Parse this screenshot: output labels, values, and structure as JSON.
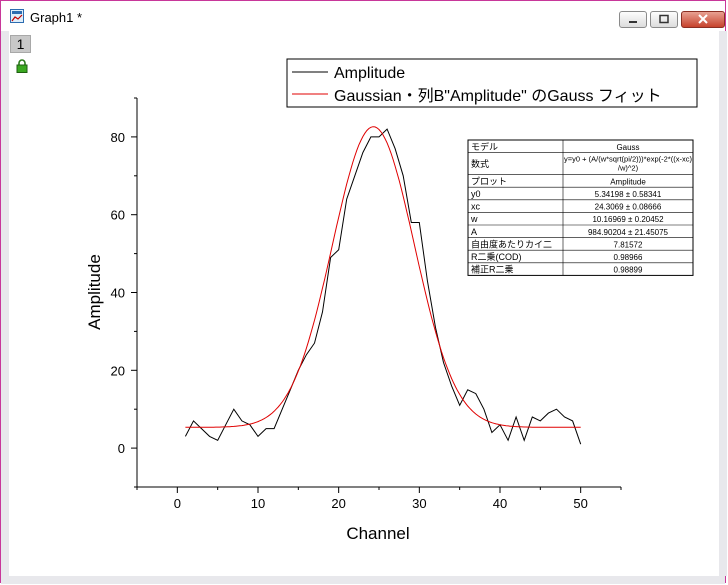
{
  "window": {
    "title": "Graph1 *",
    "layer_label": "1",
    "frame_color": "#c8379a"
  },
  "icons": [
    "graph-window-icon",
    "minimize-icon",
    "maximize-icon",
    "close-icon",
    "lock-icon"
  ],
  "chart_data": {
    "type": "line",
    "xlabel": "Channel",
    "ylabel": "Amplitude",
    "xlim": [
      -5,
      55
    ],
    "ylim": [
      -10,
      90
    ],
    "xticks": [
      "0",
      "10",
      "20",
      "30",
      "40",
      "50"
    ],
    "xtick_values": [
      0,
      10,
      20,
      30,
      40,
      50
    ],
    "yticks": [
      "0",
      "20",
      "40",
      "60",
      "80"
    ],
    "ytick_values": [
      0,
      20,
      40,
      60,
      80
    ],
    "grid": false,
    "legend_position": "top-right",
    "series": [
      {
        "name": "Amplitude",
        "color": "#000000",
        "x": [
          1,
          2,
          3,
          4,
          5,
          6,
          7,
          8,
          9,
          10,
          11,
          12,
          13,
          14,
          15,
          16,
          17,
          18,
          19,
          20,
          21,
          22,
          23,
          24,
          25,
          26,
          27,
          28,
          29,
          30,
          31,
          32,
          33,
          34,
          35,
          36,
          37,
          38,
          39,
          40,
          41,
          42,
          43,
          44,
          45,
          46,
          47,
          48,
          49,
          50
        ],
        "y": [
          3,
          7,
          5,
          3,
          2,
          6,
          10,
          7,
          6,
          3,
          5,
          5,
          10,
          15,
          20,
          24,
          27,
          35,
          49,
          51,
          64,
          70,
          76,
          80,
          80,
          82,
          77,
          70,
          58,
          58,
          43,
          31,
          22,
          16,
          11,
          15,
          14,
          10,
          4,
          6,
          2,
          8,
          2,
          8,
          7,
          9,
          10,
          8,
          7,
          1
        ]
      },
      {
        "name": "Gaussian・列B\"Amplitude\" のGauss フィット",
        "color": "#e00000",
        "model": {
          "y0": 5.34198,
          "xc": 24.3069,
          "w": 10.16969,
          "A": 984.90204
        },
        "x_range": [
          1,
          50
        ]
      }
    ],
    "results_table": {
      "header": [
        "モデル",
        "Gauss"
      ],
      "rows": [
        [
          "数式",
          "y=y0 + (A/(w*sqrt(pi/2)))*exp(-2*((x-xc)/w)^2)"
        ],
        [
          "プロット",
          "Amplitude"
        ],
        [
          "y0",
          "5.34198 ± 0.58341"
        ],
        [
          "xc",
          "24.3069 ± 0.08666"
        ],
        [
          "w",
          "10.16969 ± 0.20452"
        ],
        [
          "A",
          "984.90204 ± 21.45075"
        ],
        [
          "自由度あたりカイ二",
          "7.81572"
        ],
        [
          "R二乗(COD)",
          "0.98966"
        ],
        [
          "補正R二乗",
          "0.98899"
        ]
      ]
    }
  }
}
